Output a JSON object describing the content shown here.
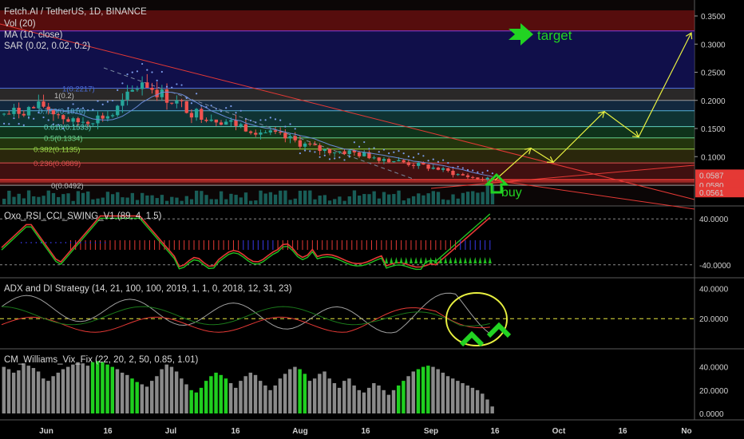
{
  "header": {
    "symbol": "Fetch.AI / TetherUS, 1D, BINANCE",
    "vol": "Vol (20)",
    "ma": "MA (10, close)",
    "sar": "SAR (0.02, 0.02, 0.2)"
  },
  "annotations": {
    "target": "target",
    "buy": "buy"
  },
  "fib_labels": [
    {
      "text": "1(0.2217)",
      "color": "#4a6bd8"
    },
    {
      "text": "1(0.2)",
      "color": "#c0c0c0"
    },
    {
      "text": "0.786(0.1816)",
      "color": "#56b0d8"
    },
    {
      "text": "0.618(0.1533)",
      "color": "#5fd0c0"
    },
    {
      "text": "0.5(0.1334)",
      "color": "#67d08a"
    },
    {
      "text": "0.382(0.1135)",
      "color": "#9bd84a"
    },
    {
      "text": "0.236(0.0889)",
      "color": "#e05050"
    },
    {
      "text": "0(0.0492)",
      "color": "#c0c0c0"
    }
  ],
  "price_axis": {
    "ticks": [
      "0.3500",
      "0.3000",
      "0.2500",
      "0.2000",
      "0.1500",
      "0.1000"
    ],
    "badges": [
      {
        "text": "0.0587",
        "color": "#e53935"
      },
      {
        "text": "0.0580",
        "color": "#e53935"
      },
      {
        "text": "0.0561",
        "color": "#e53935"
      }
    ]
  },
  "panes": {
    "oxo": {
      "title": "Oxo_RSI_CCI_SWING_V1 (89, 4, 1.5)",
      "ticks": [
        "40.0000",
        "-40.0000"
      ]
    },
    "adx": {
      "title": "ADX and DI Strategy (14, 21, 100, 100, 2019, 1, 1, 0, 2018, 12, 31, 23)",
      "ticks": [
        "40.0000",
        "20.0000"
      ]
    },
    "vix": {
      "title": "CM_Williams_Vix_Fix (22, 20, 2, 50, 0.85, 1.01)",
      "ticks": [
        "40.0000",
        "20.0000",
        "0.0000"
      ]
    }
  },
  "date_axis": [
    "Jun",
    "16",
    "Jul",
    "16",
    "Aug",
    "16",
    "Sep",
    "16",
    "Oct",
    "16",
    "No"
  ],
  "colors": {
    "bull": "#26a69a",
    "bear": "#ef5350",
    "arrow": "#22d322",
    "path": "#e8f040",
    "trend": "#e53935",
    "circle": "#e8f040"
  },
  "chart_data": [
    {
      "type": "candlestick",
      "title": "Fetch.AI / TetherUS, 1D, BINANCE",
      "ylim": [
        0.05,
        0.36
      ],
      "fib_levels": [
        {
          "ratio": 1,
          "price": 0.2217
        },
        {
          "ratio": 0.786,
          "price": 0.1816
        },
        {
          "ratio": 0.618,
          "price": 0.1533
        },
        {
          "ratio": 0.5,
          "price": 0.1334
        },
        {
          "ratio": 0.382,
          "price": 0.1135
        },
        {
          "ratio": 0.236,
          "price": 0.0889
        },
        {
          "ratio": 0,
          "price": 0.0492
        }
      ],
      "last_prices": [
        0.0587,
        0.058,
        0.0561
      ],
      "projection_path_prices": [
        0.058,
        0.115,
        0.09,
        0.18,
        0.135,
        0.32
      ],
      "target_price": 0.32
    },
    {
      "type": "line",
      "title": "Oxo_RSI_CCI_SWING_V1 (89, 4, 1.5)",
      "ylim": [
        -50,
        50
      ]
    },
    {
      "type": "line",
      "title": "ADX and DI Strategy (14, 21, 100, 100, 2019, 1, 1, 0, 2018, 12, 31, 23)",
      "ylim": [
        0,
        45
      ],
      "threshold": 20
    },
    {
      "type": "bar",
      "title": "CM_Williams_Vix_Fix (22, 20, 2, 50, 0.85, 1.01)",
      "ylim": [
        0,
        50
      ],
      "values": [
        40,
        38,
        35,
        37,
        43,
        41,
        39,
        36,
        30,
        28,
        32,
        35,
        38,
        40,
        42,
        44,
        43,
        41,
        44,
        45,
        44,
        42,
        40,
        38,
        35,
        33,
        30,
        27,
        25,
        23,
        28,
        32,
        38,
        42,
        40,
        36,
        30,
        25,
        20,
        18,
        22,
        28,
        32,
        35,
        33,
        30,
        26,
        22,
        28,
        32,
        35,
        33,
        28,
        24,
        20,
        24,
        30,
        34,
        38,
        40,
        38,
        34,
        28,
        30,
        34,
        36,
        30,
        26,
        22,
        28,
        30,
        24,
        20,
        18,
        22,
        26,
        24,
        20,
        16,
        20,
        24,
        28,
        32,
        36,
        38,
        40,
        41,
        40,
        38,
        35,
        32,
        30,
        28,
        26,
        24,
        22,
        20,
        17,
        12,
        6
      ],
      "highlighted_indices": [
        18,
        19,
        20,
        21,
        22,
        26,
        27,
        38,
        39,
        40,
        41,
        42,
        43,
        44,
        45,
        60,
        61,
        80,
        81,
        84,
        85,
        86
      ]
    }
  ]
}
